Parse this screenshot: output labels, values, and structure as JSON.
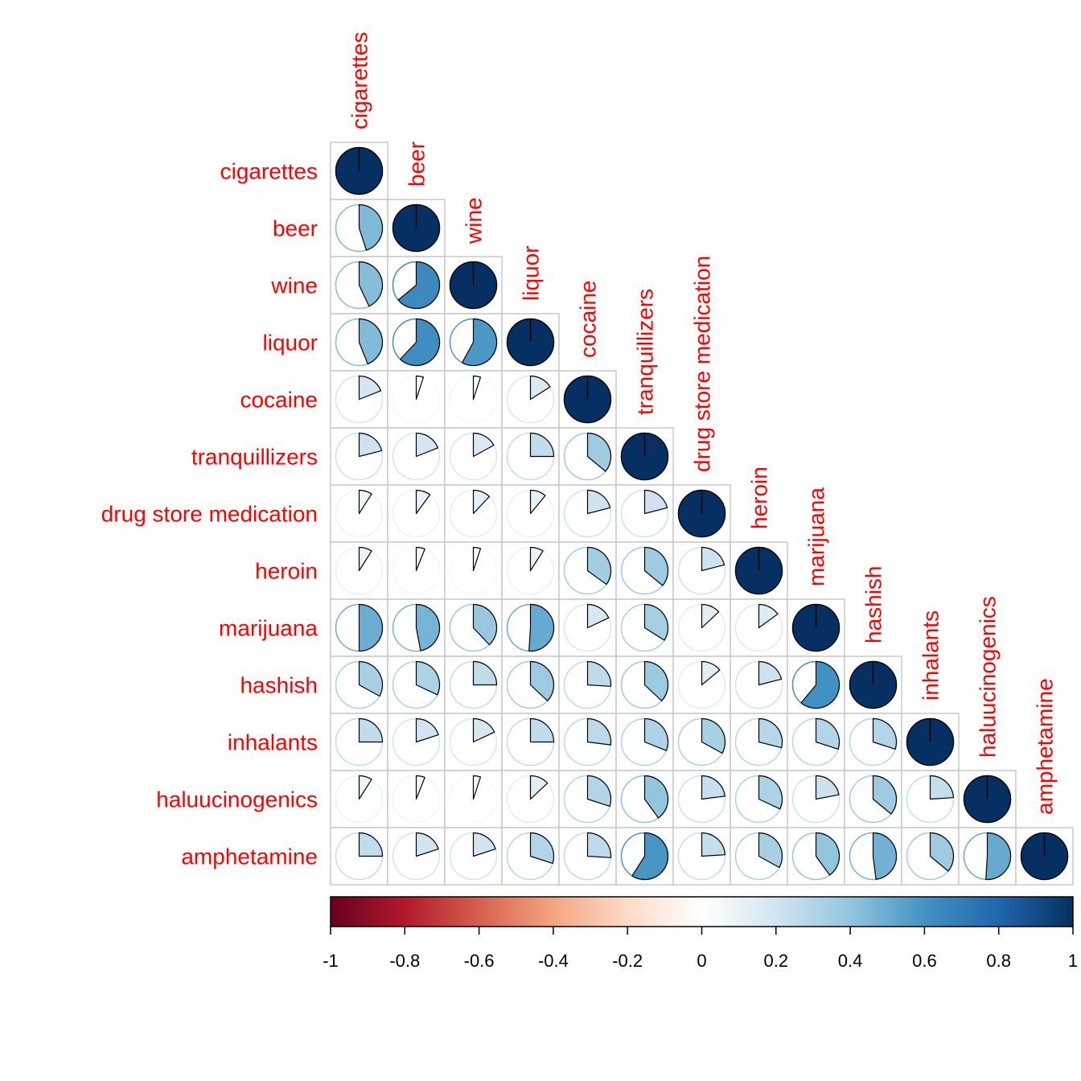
{
  "chart_data": {
    "type": "heatmap",
    "method": "pie",
    "layout": "lower-triangle",
    "variables": [
      "cigarettes",
      "beer",
      "wine",
      "liquor",
      "cocaine",
      "tranquillizers",
      "drug store medication",
      "heroin",
      "marijuana",
      "hashish",
      "inhalants",
      "haluucinogenics",
      "amphetamine"
    ],
    "matrix": [
      [
        1.0
      ],
      [
        0.45,
        1.0
      ],
      [
        0.43,
        0.64,
        1.0
      ],
      [
        0.44,
        0.62,
        0.58,
        1.0
      ],
      [
        0.19,
        0.05,
        0.05,
        0.16,
        1.0
      ],
      [
        0.21,
        0.19,
        0.17,
        0.25,
        0.36,
        1.0
      ],
      [
        0.09,
        0.1,
        0.12,
        0.11,
        0.21,
        0.21,
        1.0
      ],
      [
        0.09,
        0.06,
        0.05,
        0.09,
        0.35,
        0.36,
        0.21,
        1.0
      ],
      [
        0.5,
        0.47,
        0.38,
        0.51,
        0.18,
        0.34,
        0.13,
        0.15,
        1.0
      ],
      [
        0.33,
        0.32,
        0.25,
        0.37,
        0.26,
        0.37,
        0.14,
        0.21,
        0.61,
        1.0
      ],
      [
        0.25,
        0.2,
        0.18,
        0.25,
        0.27,
        0.31,
        0.33,
        0.29,
        0.3,
        0.3,
        1.0
      ],
      [
        0.09,
        0.06,
        0.05,
        0.13,
        0.3,
        0.4,
        0.23,
        0.32,
        0.22,
        0.36,
        0.24,
        1.0
      ],
      [
        0.25,
        0.2,
        0.2,
        0.3,
        0.26,
        0.59,
        0.24,
        0.33,
        0.4,
        0.48,
        0.36,
        0.51,
        1.0
      ]
    ],
    "colorbar": {
      "range": [
        -1,
        1
      ],
      "ticks": [
        "-1",
        "-0.8",
        "-0.6",
        "-0.4",
        "-0.2",
        "0",
        "0.2",
        "0.4",
        "0.6",
        "0.8",
        "1"
      ],
      "stops": [
        "#67001f",
        "#b2182b",
        "#d6604d",
        "#f4a582",
        "#fddbc7",
        "#ffffff",
        "#d1e5f0",
        "#92c5de",
        "#4393c3",
        "#2166ac",
        "#053061"
      ]
    },
    "label_color": "#ff0000",
    "grid": true
  }
}
